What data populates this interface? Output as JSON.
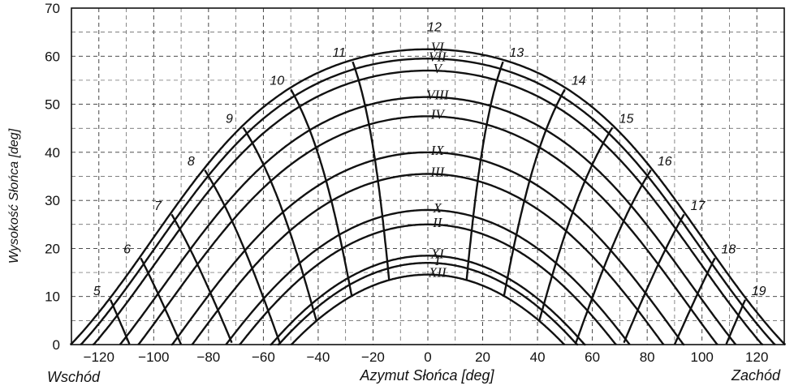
{
  "chart_data": {
    "type": "line",
    "title": "",
    "ylabel": "Wysokość Słońca [deg]",
    "xlabel": "Azymut Słońca [deg]",
    "x_left_label": "Wschód",
    "x_right_label": "Zachód",
    "xlim": [
      -130,
      130
    ],
    "ylim": [
      0,
      70
    ],
    "x_ticks": [
      -120,
      -100,
      -80,
      -60,
      -40,
      -20,
      0,
      20,
      40,
      60,
      80,
      100,
      120
    ],
    "x_tick_labels": [
      "−120",
      "−100",
      "−80",
      "−60",
      "−40",
      "−20",
      "0",
      "20",
      "40",
      "60",
      "80",
      "100",
      "120"
    ],
    "y_ticks": [
      0,
      10,
      20,
      30,
      40,
      50,
      60,
      70
    ],
    "y_tick_labels": [
      "0",
      "10",
      "20",
      "30",
      "40",
      "50",
      "60",
      "70"
    ],
    "grid": true,
    "latitude_deg": 52,
    "sun_paths": [
      {
        "label": "VI",
        "declination": 23.44
      },
      {
        "label": "VII",
        "declination": 21.5
      },
      {
        "label": "V",
        "declination": 19.0
      },
      {
        "label": "VIII",
        "declination": 13.5
      },
      {
        "label": "IV",
        "declination": 9.5
      },
      {
        "label": "IX",
        "declination": 2.0
      },
      {
        "label": "III",
        "declination": -2.5
      },
      {
        "label": "X",
        "declination": -10.0
      },
      {
        "label": "II",
        "declination": -13.0
      },
      {
        "label": "XI",
        "declination": -19.5
      },
      {
        "label": "I",
        "declination": -21.0
      },
      {
        "label": "XII",
        "declination": -23.44
      }
    ],
    "hour_lines": [
      {
        "label": "5",
        "hour": 5
      },
      {
        "label": "6",
        "hour": 6
      },
      {
        "label": "7",
        "hour": 7
      },
      {
        "label": "8",
        "hour": 8
      },
      {
        "label": "9",
        "hour": 9
      },
      {
        "label": "10",
        "hour": 10
      },
      {
        "label": "11",
        "hour": 11
      },
      {
        "label": "12",
        "hour": 12
      },
      {
        "label": "13",
        "hour": 13
      },
      {
        "label": "14",
        "hour": 14
      },
      {
        "label": "15",
        "hour": 15
      },
      {
        "label": "16",
        "hour": 16
      },
      {
        "label": "17",
        "hour": 17
      },
      {
        "label": "18",
        "hour": 18
      },
      {
        "label": "19",
        "hour": 19
      }
    ]
  }
}
